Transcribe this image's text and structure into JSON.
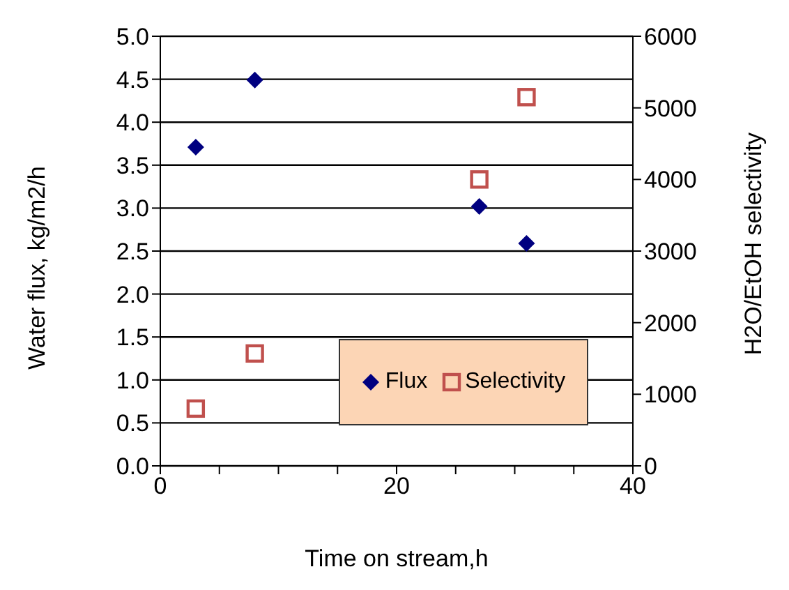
{
  "chart_data": {
    "type": "scatter",
    "xlabel": "Time on stream,h",
    "ylabel": "Water flux, kg/m2/h",
    "y2label": "H2O/EtOH selectivity",
    "x": [
      3,
      8,
      27,
      31
    ],
    "series": [
      {
        "name": "Flux",
        "color": "#000080",
        "marker": "diamond",
        "values": [
          3.71,
          4.49,
          3.02,
          2.59
        ]
      },
      {
        "name": "Selectivity",
        "color": "#c0504d",
        "marker": "square",
        "axis": "y2",
        "values": [
          800,
          1570,
          4000,
          5150
        ]
      }
    ],
    "xlim": [
      0,
      40
    ],
    "xticks": [
      0,
      {
        "value": 5,
        "label": null
      },
      {
        "value": 10,
        "label": null
      },
      {
        "value": 15,
        "label": null
      },
      20,
      {
        "value": 25,
        "label": null
      },
      {
        "value": 30,
        "label": null
      },
      {
        "value": 35,
        "label": null
      },
      40
    ],
    "ylim": [
      0,
      5
    ],
    "yticks": [
      {
        "value": 0,
        "label": "0.0"
      },
      {
        "value": 0.5,
        "label": "0.5"
      },
      {
        "value": 1,
        "label": "1.0"
      },
      {
        "value": 1.5,
        "label": "1.5"
      },
      {
        "value": 2,
        "label": "2.0"
      },
      {
        "value": 2.5,
        "label": "2.5"
      },
      {
        "value": 3,
        "label": "3.0"
      },
      {
        "value": 3.5,
        "label": "3.5"
      },
      {
        "value": 4,
        "label": "4.0"
      },
      {
        "value": 4.5,
        "label": "4.5"
      },
      {
        "value": 5,
        "label": "5.0"
      }
    ],
    "y2lim": [
      0,
      6000
    ],
    "y2ticks": [
      0,
      1000,
      2000,
      3000,
      4000,
      5000,
      6000
    ],
    "grid": "y",
    "legend": "bottom right"
  }
}
